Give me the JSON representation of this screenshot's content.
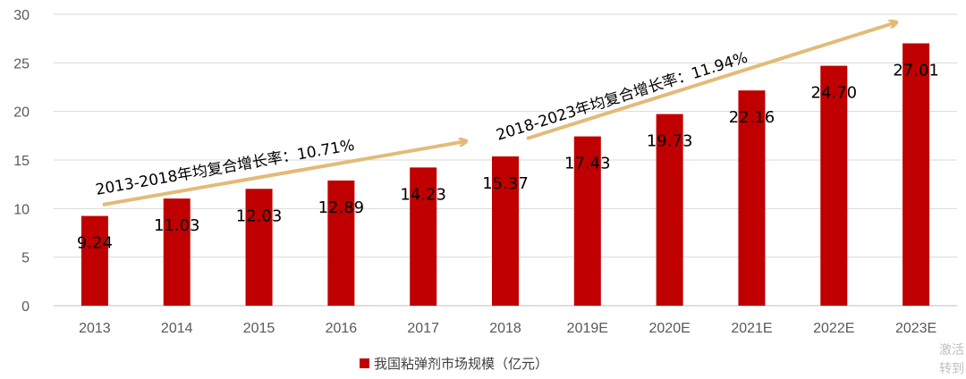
{
  "chart_data": {
    "type": "bar",
    "categories": [
      "2013",
      "2014",
      "2015",
      "2016",
      "2017",
      "2018",
      "2019E",
      "2020E",
      "2021E",
      "2022E",
      "2023E"
    ],
    "series": [
      {
        "name": "我国粘弹剂市场规模（亿元）",
        "values": [
          9.24,
          11.03,
          12.03,
          12.89,
          14.23,
          15.37,
          17.43,
          19.73,
          22.16,
          24.7,
          27.01
        ],
        "labels": [
          "9.24",
          "11.03",
          "12.03",
          "12.89",
          "14.23",
          "15.37",
          "17.43",
          "19.73",
          "22.16",
          "24.70",
          "27.01"
        ]
      }
    ],
    "ylim": [
      0,
      30
    ],
    "yticks": [
      0,
      5,
      10,
      15,
      20,
      25,
      30
    ],
    "grid": true,
    "legend_position": "bottom",
    "annotations": [
      {
        "text": "2013-2018年均复合增长率：10.71%",
        "from": "2013",
        "to": "2018"
      },
      {
        "text": "2018-2023年均复合增长率：11.94%",
        "from": "2018",
        "to": "2023E"
      }
    ],
    "colors": {
      "bar": "#C00000",
      "arrow": "#E2BB78",
      "grid": "#D9D9D9",
      "axis": "#BFBFBF"
    }
  },
  "watermark": [
    "激活",
    "转到"
  ]
}
